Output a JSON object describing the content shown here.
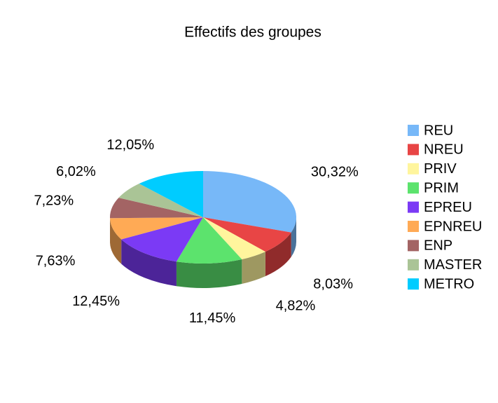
{
  "chart_data": {
    "type": "pie3d",
    "title": "Effectifs des groupes",
    "categories": [
      "REU",
      "NREU",
      "PRIV",
      "PRIM",
      "EPREU",
      "EPNREU",
      "ENP",
      "MASTER",
      "METRO"
    ],
    "values": [
      30.32,
      8.03,
      4.82,
      11.45,
      12.45,
      7.63,
      7.23,
      6.02,
      12.05
    ],
    "value_labels": [
      "30,32%",
      "8,03%",
      "4,82%",
      "11,45%",
      "12,45%",
      "7,63%",
      "7,23%",
      "6,02%",
      "12,05%"
    ],
    "colors": [
      "#77b8f8",
      "#e84545",
      "#fff59d",
      "#5ce36d",
      "#7b3af5",
      "#ffaa55",
      "#a36464",
      "#aac496",
      "#00ccff"
    ],
    "legend": "right"
  }
}
